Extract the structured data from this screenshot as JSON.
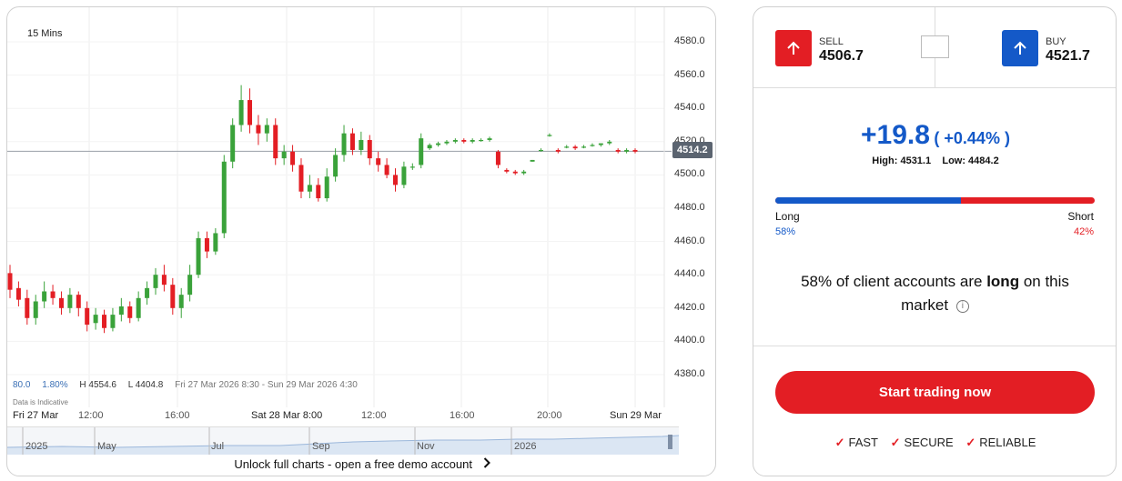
{
  "chart": {
    "interval": "15 Mins",
    "yticks": [
      "4580.0",
      "4560.0",
      "4540.0",
      "4520.0",
      "4500.0",
      "4480.0",
      "4460.0",
      "4440.0",
      "4420.0",
      "4400.0",
      "4380.0"
    ],
    "current_price": "4514.2",
    "stats": {
      "a": "80.0",
      "b": "1.80%",
      "high": "H 4554.6",
      "low": "L 4404.8",
      "range": "Fri 27 Mar 2026 8:30 - Sun 29 Mar 2026 4:30"
    },
    "indicative": "Data is Indicative",
    "xlabels": [
      "Fri 27 Mar",
      "12:00",
      "16:00",
      "Sat 28 Mar 8:00",
      "12:00",
      "16:00",
      "20:00",
      "Sun 29 Mar"
    ],
    "navlabels": [
      "2025",
      "May",
      "Jul",
      "Sep",
      "Nov",
      "2026"
    ],
    "unlock": "Unlock full charts - open a free demo account",
    "colors": {
      "up": "#3aa23a",
      "down": "#e31e24"
    }
  },
  "chart_data": {
    "type": "candlestick",
    "interval": "15 Mins",
    "ylim": [
      4370,
      4590
    ],
    "y_ticks": [
      4580,
      4560,
      4540,
      4520,
      4500,
      4480,
      4460,
      4440,
      4420,
      4400,
      4380
    ],
    "last_price": 4514.2,
    "high": 4554.6,
    "low": 4404.8,
    "change": 80.0,
    "change_pct": "1.80%",
    "x_labels": [
      "Fri 27 Mar",
      "12:00",
      "16:00",
      "Sat 28 Mar 8:00",
      "12:00",
      "16:00",
      "20:00",
      "Sun 29 Mar"
    ],
    "candles": [
      {
        "o": 4441,
        "c": 4431,
        "h": 4446,
        "l": 4426
      },
      {
        "o": 4432,
        "c": 4425,
        "h": 4436,
        "l": 4421
      },
      {
        "o": 4426,
        "c": 4414,
        "h": 4431,
        "l": 4410
      },
      {
        "o": 4414,
        "c": 4424,
        "h": 4428,
        "l": 4410
      },
      {
        "o": 4424,
        "c": 4430,
        "h": 4436,
        "l": 4420
      },
      {
        "o": 4430,
        "c": 4426,
        "h": 4434,
        "l": 4422
      },
      {
        "o": 4426,
        "c": 4420,
        "h": 4430,
        "l": 4416
      },
      {
        "o": 4420,
        "c": 4428,
        "h": 4432,
        "l": 4417
      },
      {
        "o": 4428,
        "c": 4420,
        "h": 4430,
        "l": 4415
      },
      {
        "o": 4420,
        "c": 4410,
        "h": 4424,
        "l": 4406
      },
      {
        "o": 4411,
        "c": 4416,
        "h": 4420,
        "l": 4407
      },
      {
        "o": 4416,
        "c": 4408,
        "h": 4419,
        "l": 4405
      },
      {
        "o": 4408,
        "c": 4416,
        "h": 4420,
        "l": 4406
      },
      {
        "o": 4416,
        "c": 4421,
        "h": 4426,
        "l": 4412
      },
      {
        "o": 4421,
        "c": 4414,
        "h": 4424,
        "l": 4411
      },
      {
        "o": 4414,
        "c": 4426,
        "h": 4430,
        "l": 4412
      },
      {
        "o": 4426,
        "c": 4432,
        "h": 4436,
        "l": 4422
      },
      {
        "o": 4432,
        "c": 4440,
        "h": 4444,
        "l": 4428
      },
      {
        "o": 4440,
        "c": 4434,
        "h": 4446,
        "l": 4430
      },
      {
        "o": 4434,
        "c": 4420,
        "h": 4438,
        "l": 4416
      },
      {
        "o": 4420,
        "c": 4428,
        "h": 4432,
        "l": 4414
      },
      {
        "o": 4428,
        "c": 4440,
        "h": 4446,
        "l": 4424
      },
      {
        "o": 4440,
        "c": 4462,
        "h": 4466,
        "l": 4438
      },
      {
        "o": 4462,
        "c": 4454,
        "h": 4466,
        "l": 4450
      },
      {
        "o": 4454,
        "c": 4465,
        "h": 4468,
        "l": 4452
      },
      {
        "o": 4465,
        "c": 4508,
        "h": 4512,
        "l": 4462
      },
      {
        "o": 4508,
        "c": 4530,
        "h": 4534,
        "l": 4504
      },
      {
        "o": 4530,
        "c": 4545,
        "h": 4554,
        "l": 4526
      },
      {
        "o": 4545,
        "c": 4530,
        "h": 4552,
        "l": 4525
      },
      {
        "o": 4530,
        "c": 4525,
        "h": 4536,
        "l": 4518
      },
      {
        "o": 4525,
        "c": 4530,
        "h": 4534,
        "l": 4520
      },
      {
        "o": 4530,
        "c": 4510,
        "h": 4534,
        "l": 4506
      },
      {
        "o": 4510,
        "c": 4514,
        "h": 4518,
        "l": 4506
      },
      {
        "o": 4514,
        "c": 4506,
        "h": 4518,
        "l": 4502
      },
      {
        "o": 4506,
        "c": 4490,
        "h": 4510,
        "l": 4486
      },
      {
        "o": 4490,
        "c": 4494,
        "h": 4500,
        "l": 4486
      },
      {
        "o": 4494,
        "c": 4486,
        "h": 4498,
        "l": 4484
      },
      {
        "o": 4486,
        "c": 4499,
        "h": 4504,
        "l": 4484
      },
      {
        "o": 4499,
        "c": 4512,
        "h": 4516,
        "l": 4496
      },
      {
        "o": 4512,
        "c": 4525,
        "h": 4530,
        "l": 4508
      },
      {
        "o": 4525,
        "c": 4515,
        "h": 4528,
        "l": 4512
      },
      {
        "o": 4515,
        "c": 4521,
        "h": 4526,
        "l": 4512
      },
      {
        "o": 4521,
        "c": 4510,
        "h": 4524,
        "l": 4506
      },
      {
        "o": 4510,
        "c": 4506,
        "h": 4514,
        "l": 4502
      },
      {
        "o": 4506,
        "c": 4500,
        "h": 4510,
        "l": 4498
      },
      {
        "o": 4500,
        "c": 4494,
        "h": 4504,
        "l": 4490
      },
      {
        "o": 4494,
        "c": 4505,
        "h": 4508,
        "l": 4492
      },
      {
        "o": 4505,
        "c": 4505,
        "h": 4507,
        "l": 4503
      },
      {
        "o": 4506,
        "c": 4522,
        "h": 4525,
        "l": 4504
      },
      {
        "o": 4516,
        "c": 4518,
        "h": 4519,
        "l": 4515
      },
      {
        "o": 4518,
        "c": 4519,
        "h": 4520,
        "l": 4517
      },
      {
        "o": 4519,
        "c": 4520,
        "h": 4521,
        "l": 4518
      },
      {
        "o": 4520,
        "c": 4521,
        "h": 4522,
        "l": 4519
      },
      {
        "o": 4521,
        "c": 4520,
        "h": 4522,
        "l": 4519
      },
      {
        "o": 4520,
        "c": 4521,
        "h": 4522,
        "l": 4519
      },
      {
        "o": 4521,
        "c": 4521,
        "h": 4522,
        "l": 4520
      },
      {
        "o": 4521,
        "c": 4522,
        "h": 4523,
        "l": 4520
      },
      {
        "o": 4514,
        "c": 4506,
        "h": 4515,
        "l": 4504
      },
      {
        "o": 4503,
        "c": 4502,
        "h": 4504,
        "l": 4501
      },
      {
        "o": 4502,
        "c": 4501,
        "h": 4503,
        "l": 4500
      },
      {
        "o": 4501,
        "c": 4502,
        "h": 4503,
        "l": 4500
      },
      {
        "o": 4508,
        "c": 4509,
        "h": 4509,
        "l": 4508
      },
      {
        "o": 4515,
        "c": 4515,
        "h": 4516,
        "l": 4514
      },
      {
        "o": 4524,
        "c": 4524,
        "h": 4525,
        "l": 4523
      },
      {
        "o": 4515,
        "c": 4514,
        "h": 4516,
        "l": 4513
      },
      {
        "o": 4517,
        "c": 4517,
        "h": 4518,
        "l": 4516
      },
      {
        "o": 4517,
        "c": 4516,
        "h": 4518,
        "l": 4515
      },
      {
        "o": 4517,
        "c": 4517,
        "h": 4518,
        "l": 4516
      },
      {
        "o": 4518,
        "c": 4518,
        "h": 4519,
        "l": 4517
      },
      {
        "o": 4518,
        "c": 4519,
        "h": 4519,
        "l": 4517
      },
      {
        "o": 4519,
        "c": 4520,
        "h": 4521,
        "l": 4518
      },
      {
        "o": 4515,
        "c": 4514,
        "h": 4516,
        "l": 4513
      },
      {
        "o": 4514,
        "c": 4515,
        "h": 4516,
        "l": 4513
      },
      {
        "o": 4515,
        "c": 4514,
        "h": 4516,
        "l": 4513
      }
    ]
  },
  "trade": {
    "sell_label": "SELL",
    "sell_price": "4506.7",
    "buy_label": "BUY",
    "buy_price": "4521.7",
    "change_abs": "+19.8",
    "change_pct": "( +0.44% )",
    "high": "High: 4531.1",
    "low": "Low: 4484.2",
    "long_label": "Long",
    "short_label": "Short",
    "long_pct": "58%",
    "short_pct": "42%",
    "long_fraction": 0.58,
    "sentence_pre": "58% of client accounts are ",
    "sentence_bold": "long",
    "sentence_post": " on this market",
    "cta": "Start trading now",
    "features": [
      "FAST",
      "SECURE",
      "RELIABLE"
    ],
    "colors": {
      "sell": "#e31e24",
      "buy": "#1459c8"
    }
  }
}
